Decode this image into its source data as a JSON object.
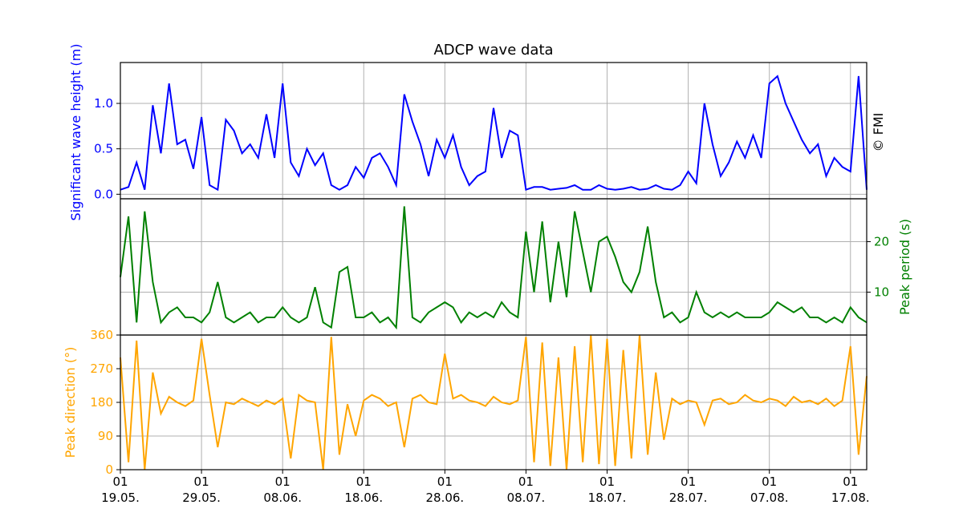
{
  "chart_data": [
    {
      "type": "line",
      "title": "ADCP wave data",
      "xlabel": "",
      "ylabel": "Significant wave height (m)",
      "ylabel_color": "#0000ff",
      "ylim": [
        -0.05,
        1.45
      ],
      "yticks": [
        0.0,
        0.5,
        1.0
      ],
      "ytick_labels": [
        "0.0",
        "0.5",
        "1.0"
      ],
      "ytick_side": "left",
      "grid": true,
      "watermark": "© FMI",
      "series": [
        {
          "color": "#0000ff",
          "x": [
            "2020-05-19",
            "2020-05-20",
            "2020-05-21",
            "2020-05-22",
            "2020-05-23",
            "2020-05-24",
            "2020-05-25",
            "2020-05-26",
            "2020-05-27",
            "2020-05-28",
            "2020-05-29",
            "2020-05-30",
            "2020-05-31",
            "2020-06-01",
            "2020-06-02",
            "2020-06-03",
            "2020-06-04",
            "2020-06-05",
            "2020-06-06",
            "2020-06-07",
            "2020-06-08",
            "2020-06-09",
            "2020-06-10",
            "2020-06-11",
            "2020-06-12",
            "2020-06-13",
            "2020-06-14",
            "2020-06-15",
            "2020-06-16",
            "2020-06-17",
            "2020-06-18",
            "2020-06-19",
            "2020-06-20",
            "2020-06-21",
            "2020-06-22",
            "2020-06-23",
            "2020-06-24",
            "2020-06-25",
            "2020-06-26",
            "2020-06-27",
            "2020-06-28",
            "2020-06-29",
            "2020-06-30",
            "2020-07-01",
            "2020-07-02",
            "2020-07-03",
            "2020-07-04",
            "2020-07-05",
            "2020-07-06",
            "2020-07-07",
            "2020-07-08",
            "2020-07-09",
            "2020-07-10",
            "2020-07-11",
            "2020-07-12",
            "2020-07-13",
            "2020-07-14",
            "2020-07-15",
            "2020-07-16",
            "2020-07-17",
            "2020-07-18",
            "2020-07-19",
            "2020-07-20",
            "2020-07-21",
            "2020-07-22",
            "2020-07-23",
            "2020-07-24",
            "2020-07-25",
            "2020-07-26",
            "2020-07-27",
            "2020-07-28",
            "2020-07-29",
            "2020-07-30",
            "2020-07-31",
            "2020-08-01",
            "2020-08-02",
            "2020-08-03",
            "2020-08-04",
            "2020-08-05",
            "2020-08-06",
            "2020-08-07",
            "2020-08-08",
            "2020-08-09",
            "2020-08-10",
            "2020-08-11",
            "2020-08-12",
            "2020-08-13",
            "2020-08-14",
            "2020-08-15",
            "2020-08-16",
            "2020-08-17",
            "2020-08-18",
            "2020-08-19"
          ],
          "values": [
            0.05,
            0.08,
            0.35,
            0.05,
            0.98,
            0.45,
            1.22,
            0.55,
            0.6,
            0.28,
            0.85,
            0.1,
            0.05,
            0.82,
            0.7,
            0.45,
            0.55,
            0.4,
            0.88,
            0.4,
            1.22,
            0.35,
            0.2,
            0.5,
            0.32,
            0.45,
            0.1,
            0.05,
            0.1,
            0.3,
            0.18,
            0.4,
            0.45,
            0.3,
            0.1,
            1.1,
            0.8,
            0.55,
            0.2,
            0.6,
            0.4,
            0.65,
            0.3,
            0.1,
            0.2,
            0.25,
            0.95,
            0.4,
            0.7,
            0.65,
            0.05,
            0.08,
            0.08,
            0.05,
            0.06,
            0.07,
            0.1,
            0.05,
            0.05,
            0.1,
            0.06,
            0.05,
            0.06,
            0.08,
            0.05,
            0.06,
            0.1,
            0.06,
            0.05,
            0.1,
            0.25,
            0.12,
            1.0,
            0.55,
            0.2,
            0.35,
            0.58,
            0.4,
            0.65,
            0.4,
            1.22,
            1.3,
            1.0,
            0.8,
            0.6,
            0.45,
            0.55,
            0.2,
            0.4,
            0.3,
            0.25,
            1.3,
            0.05
          ]
        }
      ]
    },
    {
      "type": "line",
      "xlabel": "",
      "ylabel": "Peak period (s)",
      "ylabel_color": "#008000",
      "ylim": [
        1.5,
        28.5
      ],
      "yticks": [
        10,
        20
      ],
      "ytick_labels": [
        "10",
        "20"
      ],
      "ytick_side": "right",
      "grid": true,
      "series": [
        {
          "color": "#008000",
          "x": [
            "2020-05-19",
            "2020-05-20",
            "2020-05-21",
            "2020-05-22",
            "2020-05-23",
            "2020-05-24",
            "2020-05-25",
            "2020-05-26",
            "2020-05-27",
            "2020-05-28",
            "2020-05-29",
            "2020-05-30",
            "2020-05-31",
            "2020-06-01",
            "2020-06-02",
            "2020-06-03",
            "2020-06-04",
            "2020-06-05",
            "2020-06-06",
            "2020-06-07",
            "2020-06-08",
            "2020-06-09",
            "2020-06-10",
            "2020-06-11",
            "2020-06-12",
            "2020-06-13",
            "2020-06-14",
            "2020-06-15",
            "2020-06-16",
            "2020-06-17",
            "2020-06-18",
            "2020-06-19",
            "2020-06-20",
            "2020-06-21",
            "2020-06-22",
            "2020-06-23",
            "2020-06-24",
            "2020-06-25",
            "2020-06-26",
            "2020-06-27",
            "2020-06-28",
            "2020-06-29",
            "2020-06-30",
            "2020-07-01",
            "2020-07-02",
            "2020-07-03",
            "2020-07-04",
            "2020-07-05",
            "2020-07-06",
            "2020-07-07",
            "2020-07-08",
            "2020-07-09",
            "2020-07-10",
            "2020-07-11",
            "2020-07-12",
            "2020-07-13",
            "2020-07-14",
            "2020-07-15",
            "2020-07-16",
            "2020-07-17",
            "2020-07-18",
            "2020-07-19",
            "2020-07-20",
            "2020-07-21",
            "2020-07-22",
            "2020-07-23",
            "2020-07-24",
            "2020-07-25",
            "2020-07-26",
            "2020-07-27",
            "2020-07-28",
            "2020-07-29",
            "2020-07-30",
            "2020-07-31",
            "2020-08-01",
            "2020-08-02",
            "2020-08-03",
            "2020-08-04",
            "2020-08-05",
            "2020-08-06",
            "2020-08-07",
            "2020-08-08",
            "2020-08-09",
            "2020-08-10",
            "2020-08-11",
            "2020-08-12",
            "2020-08-13",
            "2020-08-14",
            "2020-08-15",
            "2020-08-16",
            "2020-08-17",
            "2020-08-18",
            "2020-08-19"
          ],
          "values": [
            13,
            25,
            4,
            26,
            12,
            4,
            6,
            7,
            5,
            5,
            4,
            6,
            12,
            5,
            4,
            5,
            6,
            4,
            5,
            5,
            7,
            5,
            4,
            5,
            11,
            4,
            3,
            14,
            15,
            5,
            5,
            6,
            4,
            5,
            3,
            27,
            5,
            4,
            6,
            7,
            8,
            7,
            4,
            6,
            5,
            6,
            5,
            8,
            6,
            5,
            22,
            10,
            24,
            8,
            20,
            9,
            26,
            18,
            10,
            20,
            21,
            17,
            12,
            10,
            14,
            23,
            12,
            5,
            6,
            4,
            5,
            10,
            6,
            5,
            6,
            5,
            6,
            5,
            5,
            5,
            6,
            8,
            7,
            6,
            7,
            5,
            5,
            4,
            5,
            4,
            7,
            5,
            4
          ]
        }
      ]
    },
    {
      "type": "line",
      "xlabel": "",
      "ylabel": "Peak direction (°)",
      "ylabel_color": "#ffa500",
      "ylim": [
        0,
        360
      ],
      "yticks": [
        0,
        90,
        180,
        270,
        360
      ],
      "ytick_labels": [
        "0",
        "90",
        "180",
        "270",
        "360"
      ],
      "ytick_side": "left",
      "grid": true,
      "xtick_labels": [
        [
          "01",
          "19.05."
        ],
        [
          "01",
          "29.05."
        ],
        [
          "01",
          "08.06."
        ],
        [
          "01",
          "18.06."
        ],
        [
          "01",
          "28.06."
        ],
        [
          "01",
          "08.07."
        ],
        [
          "01",
          "18.07."
        ],
        [
          "01",
          "28.07."
        ],
        [
          "01",
          "07.08."
        ],
        [
          "01",
          "17.08."
        ]
      ],
      "xtick_dates": [
        "2020-05-19",
        "2020-05-29",
        "2020-06-08",
        "2020-06-18",
        "2020-06-28",
        "2020-07-08",
        "2020-07-18",
        "2020-07-28",
        "2020-08-07",
        "2020-08-17"
      ],
      "xlim": [
        "2020-05-19",
        "2020-08-19"
      ],
      "series": [
        {
          "color": "#ffa500",
          "x": [
            "2020-05-19",
            "2020-05-20",
            "2020-05-21",
            "2020-05-22",
            "2020-05-23",
            "2020-05-24",
            "2020-05-25",
            "2020-05-26",
            "2020-05-27",
            "2020-05-28",
            "2020-05-29",
            "2020-05-30",
            "2020-05-31",
            "2020-06-01",
            "2020-06-02",
            "2020-06-03",
            "2020-06-04",
            "2020-06-05",
            "2020-06-06",
            "2020-06-07",
            "2020-06-08",
            "2020-06-09",
            "2020-06-10",
            "2020-06-11",
            "2020-06-12",
            "2020-06-13",
            "2020-06-14",
            "2020-06-15",
            "2020-06-16",
            "2020-06-17",
            "2020-06-18",
            "2020-06-19",
            "2020-06-20",
            "2020-06-21",
            "2020-06-22",
            "2020-06-23",
            "2020-06-24",
            "2020-06-25",
            "2020-06-26",
            "2020-06-27",
            "2020-06-28",
            "2020-06-29",
            "2020-06-30",
            "2020-07-01",
            "2020-07-02",
            "2020-07-03",
            "2020-07-04",
            "2020-07-05",
            "2020-07-06",
            "2020-07-07",
            "2020-07-08",
            "2020-07-09",
            "2020-07-10",
            "2020-07-11",
            "2020-07-12",
            "2020-07-13",
            "2020-07-14",
            "2020-07-15",
            "2020-07-16",
            "2020-07-17",
            "2020-07-18",
            "2020-07-19",
            "2020-07-20",
            "2020-07-21",
            "2020-07-22",
            "2020-07-23",
            "2020-07-24",
            "2020-07-25",
            "2020-07-26",
            "2020-07-27",
            "2020-07-28",
            "2020-07-29",
            "2020-07-30",
            "2020-07-31",
            "2020-08-01",
            "2020-08-02",
            "2020-08-03",
            "2020-08-04",
            "2020-08-05",
            "2020-08-06",
            "2020-08-07",
            "2020-08-08",
            "2020-08-09",
            "2020-08-10",
            "2020-08-11",
            "2020-08-12",
            "2020-08-13",
            "2020-08-14",
            "2020-08-15",
            "2020-08-16",
            "2020-08-17",
            "2020-08-18",
            "2020-08-19"
          ],
          "values": [
            300,
            20,
            345,
            0,
            260,
            150,
            195,
            180,
            170,
            185,
            350,
            200,
            60,
            180,
            175,
            190,
            180,
            170,
            185,
            175,
            190,
            30,
            200,
            185,
            180,
            0,
            355,
            40,
            175,
            90,
            185,
            200,
            190,
            170,
            180,
            60,
            190,
            200,
            180,
            175,
            310,
            190,
            200,
            185,
            180,
            170,
            195,
            180,
            175,
            185,
            355,
            20,
            340,
            10,
            300,
            0,
            330,
            20,
            360,
            15,
            350,
            10,
            320,
            30,
            360,
            40,
            260,
            80,
            190,
            175,
            185,
            180,
            120,
            185,
            190,
            175,
            180,
            200,
            185,
            180,
            190,
            185,
            170,
            195,
            180,
            185,
            175,
            190,
            170,
            185,
            330,
            40,
            250
          ]
        }
      ]
    }
  ]
}
